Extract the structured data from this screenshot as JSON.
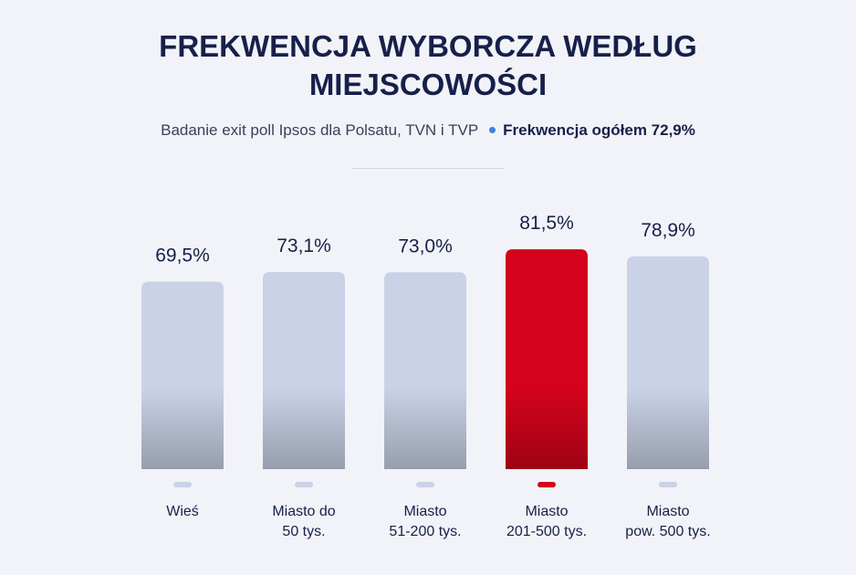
{
  "chart_data": {
    "type": "bar",
    "title": "FREKWENCJA WYBORCZA WEDŁUG MIEJSCOWOŚCI",
    "subtitle": "Badanie exit poll Ipsos dla Polsatu, TVN i TVP",
    "annotation": "Frekwencja ogółem 72,9%",
    "categories": [
      "Wieś",
      "Miasto do\n50 tys.",
      "Miasto\n51-200 tys.",
      "Miasto\n201-500 tys.",
      "Miasto\npow. 500 tys."
    ],
    "values": [
      69.5,
      73.1,
      73.0,
      81.5,
      78.9
    ],
    "value_labels": [
      "69,5%",
      "73,1%",
      "73,0%",
      "81,5%",
      "78,9%"
    ],
    "colors": [
      "#c9d2e7",
      "#c9d2e7",
      "#c9d2e7",
      "#d4021c",
      "#c9d2e7"
    ]
  }
}
